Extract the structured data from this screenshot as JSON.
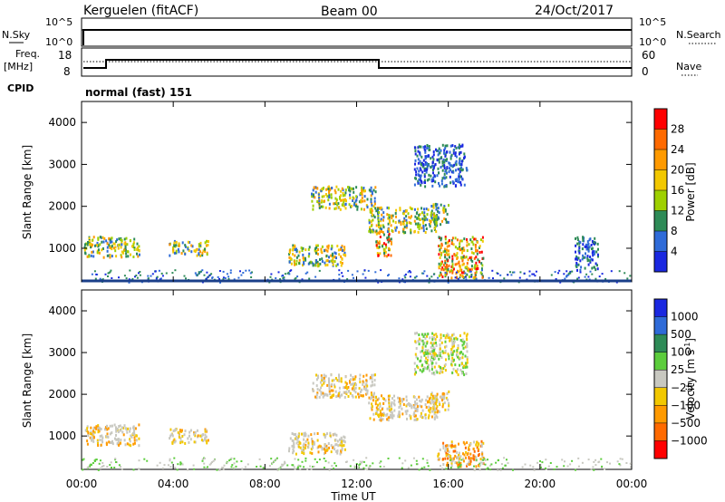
{
  "header": {
    "station": "Kerguelen (fitACF)",
    "beam": "Beam 00",
    "date": "24/Oct/2017"
  },
  "status_panels": {
    "nsky": {
      "label": "N.Sky",
      "ticks": [
        "10^5",
        "10^0"
      ]
    },
    "nsearch": {
      "label": "N.Search",
      "ticks": [
        "10^5",
        "10^0"
      ],
      "line_style": "dotted"
    },
    "freq": {
      "label": "Freq.",
      "unit": "[MHz]",
      "ticks": [
        "18",
        "8"
      ],
      "ylim": [
        8,
        18
      ]
    },
    "nave": {
      "label": "Nave",
      "ticks": [
        "60",
        "0"
      ],
      "ylim": [
        0,
        60
      ],
      "line_style": "dotted"
    },
    "cpid": {
      "label": "CPID",
      "value": "normal (fast) 151"
    }
  },
  "chart_data": [
    {
      "type": "heatmap",
      "panel": "power",
      "ylabel": "Slant Range [km]",
      "ylim": [
        200,
        4500
      ],
      "yticks": [
        "4000",
        "3000",
        "2000",
        "1000"
      ],
      "xlim": [
        "00:00",
        "24:00"
      ],
      "colorbar": {
        "label": "Power [dB]",
        "ticks": [
          "28",
          "24",
          "20",
          "16",
          "12",
          "8",
          "4"
        ],
        "colors": [
          "#ff0000",
          "#ff6a00",
          "#ff9a00",
          "#f2c800",
          "#9ed000",
          "#2e8b57",
          "#2f6bd8",
          "#1a28e0"
        ]
      },
      "echo_regions": [
        {
          "x": [
            0.1,
            2.5
          ],
          "y": [
            800,
            1300
          ],
          "level": "moderate"
        },
        {
          "x": [
            3.8,
            5.5
          ],
          "y": [
            850,
            1200
          ],
          "level": "moderate"
        },
        {
          "x": [
            9.0,
            11.5
          ],
          "y": [
            600,
            1100
          ],
          "level": "moderate"
        },
        {
          "x": [
            10.0,
            12.8
          ],
          "y": [
            1950,
            2500
          ],
          "level": "moderate"
        },
        {
          "x": [
            12.5,
            15.5
          ],
          "y": [
            1400,
            2000
          ],
          "level": "moderate"
        },
        {
          "x": [
            12.8,
            13.5
          ],
          "y": [
            800,
            1400
          ],
          "level": "strong"
        },
        {
          "x": [
            15.2,
            16.0
          ],
          "y": [
            1600,
            2100
          ],
          "level": "moderate"
        },
        {
          "x": [
            15.5,
            17.5
          ],
          "y": [
            300,
            1300
          ],
          "level": "strong"
        },
        {
          "x": [
            21.5,
            22.5
          ],
          "y": [
            500,
            1300
          ],
          "level": "weak"
        },
        {
          "x": [
            14.5,
            16.8
          ],
          "y": [
            2500,
            3500
          ],
          "level": "weak"
        }
      ]
    },
    {
      "type": "heatmap",
      "panel": "velocity",
      "ylabel": "Slant Range [km]",
      "ylim": [
        200,
        4500
      ],
      "yticks": [
        "4000",
        "3000",
        "2000",
        "1000"
      ],
      "xlim": [
        "00:00",
        "24:00"
      ],
      "xticks": [
        "00:00",
        "04:00",
        "08:00",
        "12:00",
        "16:00",
        "20:00",
        "00:00"
      ],
      "xlabel": "Time UT",
      "colorbar": {
        "label": "Velocity [m s",
        "label_sup": "-1",
        "label_end": "]",
        "ticks": [
          "1000",
          "500",
          "100",
          "25",
          "−25",
          "−100",
          "−500",
          "−1000"
        ],
        "colors": [
          "#1a28e0",
          "#2f6bd8",
          "#2e8b57",
          "#5ccd3c",
          "#c8c8c0",
          "#f2c800",
          "#ff9a00",
          "#ff6a00",
          "#ff0000"
        ]
      },
      "echo_regions": [
        {
          "x": [
            0.1,
            2.5
          ],
          "y": [
            800,
            1300
          ],
          "level": "ground"
        },
        {
          "x": [
            3.8,
            5.5
          ],
          "y": [
            850,
            1200
          ],
          "level": "ground"
        },
        {
          "x": [
            9.0,
            11.5
          ],
          "y": [
            600,
            1100
          ],
          "level": "ground"
        },
        {
          "x": [
            10.0,
            12.8
          ],
          "y": [
            1950,
            2500
          ],
          "level": "ground"
        },
        {
          "x": [
            12.5,
            15.5
          ],
          "y": [
            1400,
            2000
          ],
          "level": "ground"
        },
        {
          "x": [
            15.5,
            17.5
          ],
          "y": [
            300,
            900
          ],
          "level": "negative"
        },
        {
          "x": [
            15.2,
            16.0
          ],
          "y": [
            1600,
            2100
          ],
          "level": "ground"
        },
        {
          "x": [
            14.5,
            16.8
          ],
          "y": [
            2500,
            3500
          ],
          "level": "weak"
        }
      ]
    }
  ]
}
